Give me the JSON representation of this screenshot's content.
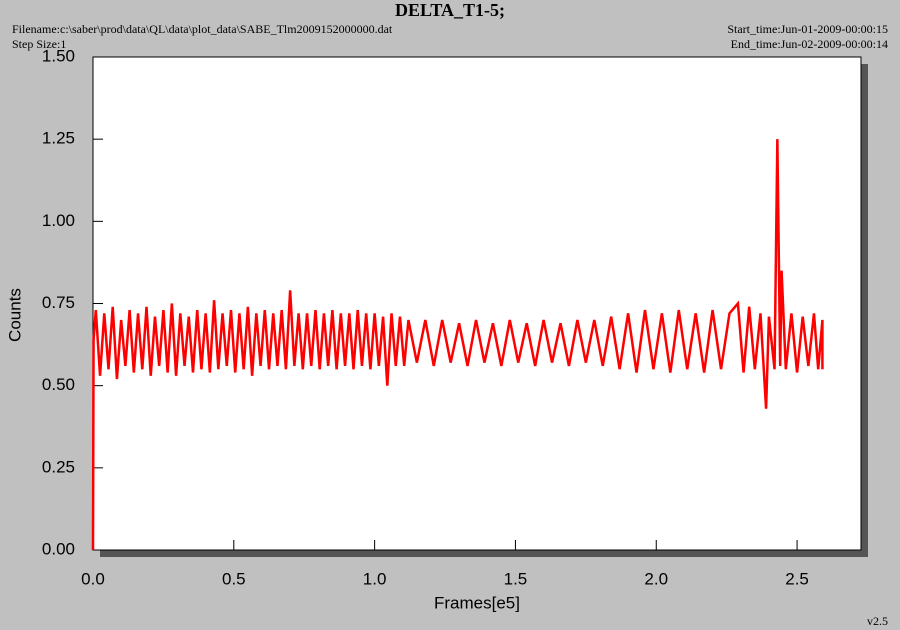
{
  "chart_data": {
    "type": "line",
    "title": "DELTA_T1-5;",
    "filename": "Filename:c:\\saber\\prod\\data\\QL\\data\\plot_data\\SABE_Tlm2009152000000.dat",
    "step_size": "Step Size:1",
    "start_time": "Start_time:Jun-01-2009-00:00:15",
    "end_time": "End_time:Jun-02-2009-00:00:14",
    "version": "v2.5",
    "x_label": "Frames[e5]",
    "y_label": "Counts",
    "xlim": [
      0,
      2.727
    ],
    "ylim": [
      0,
      1.5
    ],
    "xticks": [
      {
        "value": 0,
        "label": "0.0"
      },
      0.5,
      {
        "value": 1,
        "label": "1.0"
      },
      1.5,
      {
        "value": 2,
        "label": "2.0"
      },
      2.5
    ],
    "yticks": [
      {
        "value": 0,
        "label": "0.00"
      },
      {
        "value": 0.25,
        "label": "0.25"
      },
      {
        "value": 0.5,
        "label": "0.50"
      },
      {
        "value": 0.75,
        "label": "0.75"
      },
      {
        "value": 1,
        "label": "1.00"
      },
      {
        "value": 1.25,
        "label": "1.25"
      },
      {
        "value": 1.5,
        "label": "1.50"
      }
    ],
    "x": [
      0,
      0.002,
      0.01,
      0.025,
      0.04,
      0.055,
      0.07,
      0.085,
      0.1,
      0.115,
      0.13,
      0.145,
      0.16,
      0.175,
      0.19,
      0.205,
      0.22,
      0.235,
      0.25,
      0.265,
      0.28,
      0.295,
      0.31,
      0.325,
      0.34,
      0.355,
      0.37,
      0.385,
      0.4,
      0.415,
      0.43,
      0.445,
      0.46,
      0.475,
      0.49,
      0.505,
      0.52,
      0.535,
      0.55,
      0.565,
      0.58,
      0.595,
      0.61,
      0.625,
      0.64,
      0.655,
      0.67,
      0.685,
      0.7,
      0.715,
      0.73,
      0.745,
      0.76,
      0.775,
      0.79,
      0.805,
      0.82,
      0.835,
      0.85,
      0.865,
      0.88,
      0.895,
      0.91,
      0.925,
      0.94,
      0.955,
      0.97,
      0.985,
      1.0,
      1.015,
      1.03,
      1.045,
      1.06,
      1.075,
      1.09,
      1.105,
      1.12,
      1.15,
      1.18,
      1.21,
      1.24,
      1.27,
      1.3,
      1.33,
      1.36,
      1.39,
      1.42,
      1.45,
      1.48,
      1.51,
      1.54,
      1.57,
      1.6,
      1.63,
      1.66,
      1.69,
      1.72,
      1.75,
      1.78,
      1.81,
      1.84,
      1.87,
      1.9,
      1.93,
      1.96,
      1.99,
      2.02,
      2.05,
      2.08,
      2.11,
      2.14,
      2.17,
      2.2,
      2.23,
      2.26,
      2.29,
      2.31,
      2.33,
      2.35,
      2.37,
      2.39,
      2.4,
      2.42,
      2.43,
      2.44,
      2.445,
      2.46,
      2.48,
      2.5,
      2.52,
      2.54,
      2.56,
      2.575,
      2.59,
      2.59
    ],
    "series": [
      {
        "color": "#ff0000",
        "values": [
          0,
          0.64,
          0.73,
          0.53,
          0.72,
          0.55,
          0.74,
          0.52,
          0.7,
          0.56,
          0.73,
          0.54,
          0.72,
          0.55,
          0.74,
          0.53,
          0.71,
          0.56,
          0.73,
          0.54,
          0.75,
          0.53,
          0.72,
          0.56,
          0.71,
          0.54,
          0.73,
          0.55,
          0.72,
          0.54,
          0.76,
          0.55,
          0.72,
          0.56,
          0.73,
          0.54,
          0.72,
          0.55,
          0.74,
          0.53,
          0.72,
          0.56,
          0.73,
          0.55,
          0.72,
          0.56,
          0.73,
          0.55,
          0.79,
          0.56,
          0.72,
          0.55,
          0.72,
          0.56,
          0.73,
          0.55,
          0.72,
          0.56,
          0.73,
          0.55,
          0.72,
          0.56,
          0.72,
          0.55,
          0.73,
          0.56,
          0.72,
          0.55,
          0.72,
          0.56,
          0.71,
          0.5,
          0.72,
          0.56,
          0.71,
          0.56,
          0.7,
          0.57,
          0.7,
          0.56,
          0.7,
          0.57,
          0.69,
          0.56,
          0.7,
          0.57,
          0.69,
          0.56,
          0.7,
          0.57,
          0.69,
          0.56,
          0.7,
          0.57,
          0.69,
          0.56,
          0.7,
          0.57,
          0.7,
          0.56,
          0.71,
          0.55,
          0.72,
          0.54,
          0.73,
          0.55,
          0.72,
          0.54,
          0.73,
          0.55,
          0.72,
          0.54,
          0.73,
          0.55,
          0.72,
          0.75,
          0.54,
          0.74,
          0.55,
          0.72,
          0.43,
          0.71,
          0.55,
          1.25,
          0.56,
          0.85,
          0.55,
          0.72,
          0.54,
          0.71,
          0.56,
          0.72,
          0.55,
          0.7,
          0.55
        ]
      }
    ]
  }
}
